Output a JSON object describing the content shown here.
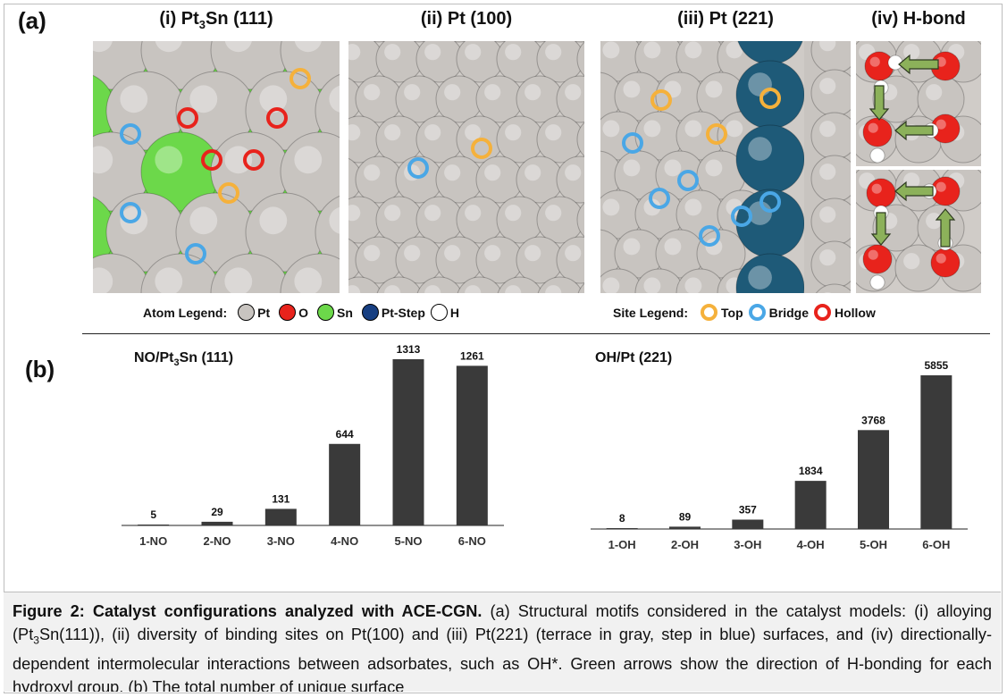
{
  "panel_a": {
    "letter": "(a)",
    "titles": [
      {
        "prefix": "(i) Pt",
        "sub": "3",
        "suffix": "Sn (111)"
      },
      {
        "text": "(ii) Pt (100)"
      },
      {
        "text": "(iii) Pt (221)"
      },
      {
        "text": "(iv) H-bond"
      }
    ],
    "atom_legend": {
      "label": "Atom Legend:",
      "items": [
        {
          "name": "Pt",
          "color": "#c8c4c0"
        },
        {
          "name": "O",
          "color": "#e8231c"
        },
        {
          "name": "Sn",
          "color": "#6cd84a"
        },
        {
          "name": "Pt-Step",
          "color": "#173f82"
        },
        {
          "name": "H",
          "color": "#ffffff"
        }
      ]
    },
    "site_legend": {
      "label": "Site Legend:",
      "items": [
        {
          "name": "Top",
          "color": "#f5b13b"
        },
        {
          "name": "Bridge",
          "color": "#4aa7e6"
        },
        {
          "name": "Hollow",
          "color": "#e8231c"
        }
      ]
    }
  },
  "panel_b": {
    "letter": "(b)",
    "titles": [
      {
        "prefix": "NO/Pt",
        "sub": "3",
        "suffix": "Sn (111)"
      },
      {
        "text": "OH/Pt (221)"
      }
    ]
  },
  "chart_data": [
    {
      "type": "bar",
      "title": "NO/Pt3Sn (111)",
      "categories": [
        "1-NO",
        "2-NO",
        "3-NO",
        "4-NO",
        "5-NO",
        "6-NO"
      ],
      "values": [
        5,
        29,
        131,
        644,
        1313,
        1261
      ],
      "ylim": [
        0,
        1313
      ],
      "grid": false,
      "bar_color": "#3a3a3a"
    },
    {
      "type": "bar",
      "title": "OH/Pt (221)",
      "categories": [
        "1-OH",
        "2-OH",
        "3-OH",
        "4-OH",
        "5-OH",
        "6-OH"
      ],
      "values": [
        8,
        89,
        357,
        1834,
        3768,
        5855
      ],
      "ylim": [
        0,
        5855
      ],
      "grid": false,
      "bar_color": "#3a3a3a"
    }
  ],
  "caption": {
    "bold": "Figure 2: Catalyst configurations analyzed with ACE-CGN.",
    "seg1": " (a) Structural motifs considered in the catalyst models: (i) alloying (Pt",
    "sub": "3",
    "seg2": "Sn(111)), (ii) diversity of binding sites on Pt(100) and (iii) Pt(221) (terrace in gray, step in blue) surfaces, and (iv) directionally-dependent intermolecular interactions between adsorbates, such as OH*. Green arrows show the direction of H-bonding for each hydroxyl group. (b) The total number of unique surface"
  },
  "colors": {
    "pt": "#c8c4c0",
    "sn": "#6cd84a",
    "step": "#1e5a78",
    "o": "#e8231c",
    "h": "#ffffff",
    "top": "#f5b13b",
    "bridge": "#4aa7e6",
    "hollow": "#e8231c",
    "arrow": "#8cb15a"
  }
}
